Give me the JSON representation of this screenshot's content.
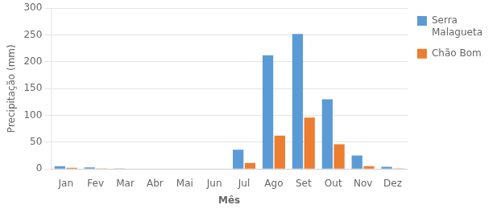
{
  "chart_data": {
    "type": "bar",
    "categories": [
      "Jan",
      "Fev",
      "Mar",
      "Abr",
      "Mai",
      "Jun",
      "Jul",
      "Ago",
      "Set",
      "Out",
      "Nov",
      "Dez"
    ],
    "series": [
      {
        "name": "Serra\nMalagueta",
        "color": "#5B9BD5",
        "values": [
          5,
          3,
          1,
          0.5,
          0.5,
          0.5,
          36,
          212,
          252,
          130,
          25,
          4
        ]
      },
      {
        "name": "Chão Bom",
        "color": "#ED7D31",
        "values": [
          2,
          1,
          0.5,
          0.5,
          0.5,
          0.5,
          11,
          62,
          96,
          46,
          5,
          1
        ]
      }
    ],
    "xlabel": "Mês",
    "ylabel": "Precipitação (mm)",
    "ylim": [
      0,
      300
    ],
    "yticks": [
      0,
      50,
      100,
      150,
      200,
      250,
      300
    ],
    "grid": true,
    "legend": "right"
  }
}
